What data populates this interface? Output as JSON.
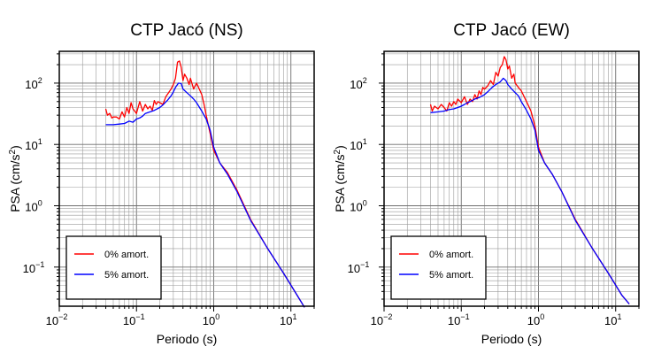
{
  "figure": {
    "panels": [
      {
        "title": "CTP Jacó (NS)",
        "xlabel": "Periodo (s)",
        "ylabel_main": "PSA (cm/s",
        "ylabel_sup": "2",
        "ylabel_close": ")"
      },
      {
        "title": "CTP Jacó (EW)",
        "xlabel": "Periodo (s)",
        "ylabel_main": "PSA (cm/s",
        "ylabel_sup": "2",
        "ylabel_close": ")"
      }
    ]
  },
  "chart_data": [
    {
      "type": "line",
      "title": "CTP Jacó (NS)",
      "xlabel": "Periodo (s)",
      "ylabel": "PSA (cm/s2)",
      "x_scale": "log",
      "y_scale": "log",
      "xlim": [
        0.01,
        20
      ],
      "ylim": [
        0.023,
        330
      ],
      "x_ticks": [
        {
          "base": "10",
          "exp": "−2",
          "value": 0.01
        },
        {
          "base": "10",
          "exp": "−1",
          "value": 0.1
        },
        {
          "base": "10",
          "exp": "0",
          "value": 1
        },
        {
          "base": "10",
          "exp": "1",
          "value": 10
        }
      ],
      "y_ticks": [
        {
          "base": "10",
          "exp": "−1",
          "value": 0.1
        },
        {
          "base": "10",
          "exp": "0",
          "value": 1
        },
        {
          "base": "10",
          "exp": "1",
          "value": 10
        },
        {
          "base": "10",
          "exp": "2",
          "value": 100
        }
      ],
      "grid": true,
      "legend_position": "bottom-left",
      "series": [
        {
          "name": "0% amort.",
          "color": "#ff0000",
          "x": [
            0.04,
            0.042,
            0.045,
            0.048,
            0.05,
            0.055,
            0.06,
            0.065,
            0.07,
            0.075,
            0.08,
            0.085,
            0.09,
            0.1,
            0.11,
            0.12,
            0.13,
            0.14,
            0.15,
            0.16,
            0.17,
            0.18,
            0.19,
            0.2,
            0.22,
            0.24,
            0.26,
            0.28,
            0.3,
            0.32,
            0.34,
            0.36,
            0.38,
            0.4,
            0.42,
            0.45,
            0.48,
            0.5,
            0.55,
            0.6,
            0.65,
            0.7,
            0.75,
            0.8,
            0.9,
            1.0,
            1.2,
            1.5,
            2.0,
            3.0,
            5.0,
            8.0,
            12.0,
            15.0
          ],
          "y": [
            38,
            30,
            32,
            27,
            28,
            28,
            26,
            34,
            28,
            40,
            32,
            48,
            38,
            32,
            50,
            35,
            45,
            38,
            42,
            36,
            52,
            45,
            50,
            48,
            45,
            60,
            70,
            80,
            95,
            120,
            220,
            230,
            180,
            110,
            140,
            120,
            95,
            120,
            80,
            100,
            80,
            65,
            45,
            30,
            15,
            8,
            5,
            3.5,
            1.8,
            0.6,
            0.2,
            0.08,
            0.035,
            0.022
          ]
        },
        {
          "name": "5% amort.",
          "color": "#0000ff",
          "x": [
            0.04,
            0.05,
            0.06,
            0.07,
            0.08,
            0.09,
            0.1,
            0.11,
            0.12,
            0.13,
            0.15,
            0.17,
            0.2,
            0.22,
            0.25,
            0.28,
            0.3,
            0.32,
            0.35,
            0.38,
            0.4,
            0.45,
            0.5,
            0.55,
            0.6,
            0.7,
            0.8,
            0.9,
            1.0,
            1.2,
            1.5,
            2.0,
            3.0,
            5.0,
            8.0,
            12.0,
            15.0
          ],
          "y": [
            21,
            21,
            21.5,
            22,
            24,
            23,
            26,
            27,
            29,
            32,
            34,
            36,
            40,
            44,
            52,
            62,
            72,
            85,
            100,
            98,
            80,
            70,
            62,
            55,
            48,
            35,
            26,
            17,
            9,
            5,
            3.3,
            1.7,
            0.58,
            0.2,
            0.08,
            0.035,
            0.022
          ]
        }
      ]
    },
    {
      "type": "line",
      "title": "CTP Jacó (EW)",
      "xlabel": "Periodo (s)",
      "ylabel": "PSA (cm/s2)",
      "x_scale": "log",
      "y_scale": "log",
      "xlim": [
        0.01,
        20
      ],
      "ylim": [
        0.023,
        330
      ],
      "x_ticks": [
        {
          "base": "10",
          "exp": "−2",
          "value": 0.01
        },
        {
          "base": "10",
          "exp": "−1",
          "value": 0.1
        },
        {
          "base": "10",
          "exp": "0",
          "value": 1
        },
        {
          "base": "10",
          "exp": "1",
          "value": 10
        }
      ],
      "y_ticks": [
        {
          "base": "10",
          "exp": "−1",
          "value": 0.1
        },
        {
          "base": "10",
          "exp": "0",
          "value": 1
        },
        {
          "base": "10",
          "exp": "1",
          "value": 10
        },
        {
          "base": "10",
          "exp": "2",
          "value": 100
        }
      ],
      "grid": true,
      "legend_position": "bottom-left",
      "series": [
        {
          "name": "0% amort.",
          "color": "#ff0000",
          "x": [
            0.04,
            0.042,
            0.045,
            0.05,
            0.055,
            0.06,
            0.065,
            0.07,
            0.075,
            0.08,
            0.085,
            0.09,
            0.1,
            0.11,
            0.12,
            0.13,
            0.14,
            0.15,
            0.16,
            0.17,
            0.18,
            0.19,
            0.2,
            0.22,
            0.24,
            0.26,
            0.28,
            0.3,
            0.32,
            0.34,
            0.36,
            0.38,
            0.4,
            0.42,
            0.45,
            0.48,
            0.5,
            0.55,
            0.6,
            0.7,
            0.8,
            0.9,
            1.0,
            1.2,
            1.5,
            2.0,
            3.0,
            5.0,
            8.0,
            12.0,
            15.0
          ],
          "y": [
            45,
            35,
            42,
            38,
            45,
            40,
            35,
            48,
            42,
            50,
            45,
            55,
            48,
            60,
            45,
            55,
            50,
            65,
            55,
            75,
            65,
            85,
            80,
            90,
            110,
            95,
            150,
            130,
            180,
            200,
            270,
            240,
            170,
            190,
            120,
            140,
            100,
            85,
            75,
            50,
            35,
            20,
            9,
            5,
            3.3,
            1.7,
            0.6,
            0.2,
            0.08,
            0.035,
            0.025
          ]
        },
        {
          "name": "5% amort.",
          "color": "#0000ff",
          "x": [
            0.04,
            0.05,
            0.06,
            0.07,
            0.08,
            0.09,
            0.1,
            0.11,
            0.12,
            0.13,
            0.15,
            0.17,
            0.2,
            0.22,
            0.25,
            0.28,
            0.3,
            0.32,
            0.35,
            0.38,
            0.4,
            0.45,
            0.5,
            0.55,
            0.6,
            0.7,
            0.8,
            0.9,
            1.0,
            1.2,
            1.5,
            2.0,
            3.0,
            5.0,
            8.0,
            12.0,
            15.0
          ],
          "y": [
            33,
            34,
            35,
            37,
            38,
            40,
            42,
            45,
            48,
            50,
            55,
            58,
            65,
            72,
            85,
            95,
            100,
            105,
            120,
            110,
            95,
            80,
            70,
            62,
            50,
            36,
            26,
            17,
            8,
            5,
            3.3,
            1.7,
            0.58,
            0.2,
            0.08,
            0.035,
            0.025
          ]
        }
      ]
    }
  ]
}
